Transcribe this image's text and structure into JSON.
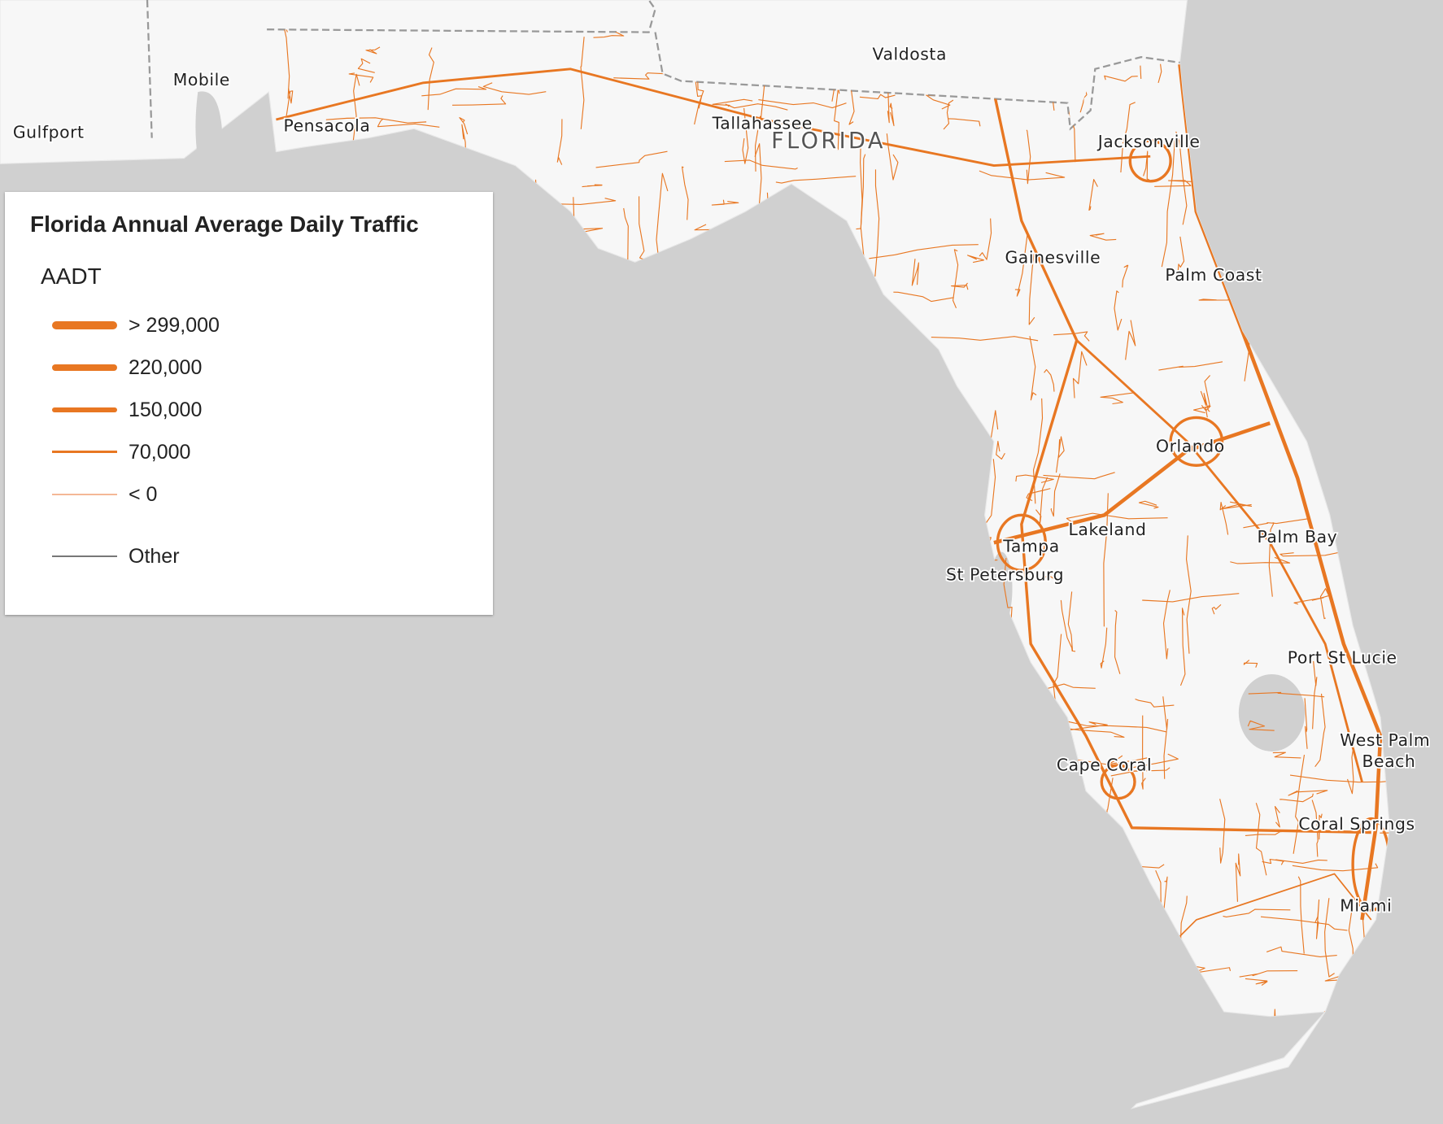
{
  "map": {
    "state_label": "FLORIDA",
    "cities": [
      {
        "name": "Valdosta"
      },
      {
        "name": "Mobile"
      },
      {
        "name": "Gulfport"
      },
      {
        "name": "Pensacola"
      },
      {
        "name": "Tallahassee"
      },
      {
        "name": "Jacksonville"
      },
      {
        "name": "Gainesville"
      },
      {
        "name": "Palm Coast"
      },
      {
        "name": "Orlando"
      },
      {
        "name": "Lakeland"
      },
      {
        "name": "Tampa"
      },
      {
        "name": "St Petersburg"
      },
      {
        "name": "Palm Bay"
      },
      {
        "name": "Port St Lucie"
      },
      {
        "name": "West Palm"
      },
      {
        "name": "Beach"
      },
      {
        "name": "Cape Coral"
      },
      {
        "name": "Coral Springs"
      },
      {
        "name": "Miami"
      }
    ],
    "colors": {
      "water": "#d0d0d0",
      "land": "#f7f7f7",
      "road": "#e87722",
      "border": "#9a9a9a"
    }
  },
  "legend": {
    "title": "Florida Annual Average Daily Traffic",
    "field": "AADT",
    "items": [
      {
        "label": "> 299,000",
        "color": "#e87722"
      },
      {
        "label": "220,000",
        "color": "#e87722"
      },
      {
        "label": "150,000",
        "color": "#e87722"
      },
      {
        "label": "70,000",
        "color": "#e87722"
      },
      {
        "label": "< 0",
        "color": "#f4b896"
      },
      {
        "label": "Other",
        "color": "#777777"
      }
    ]
  }
}
